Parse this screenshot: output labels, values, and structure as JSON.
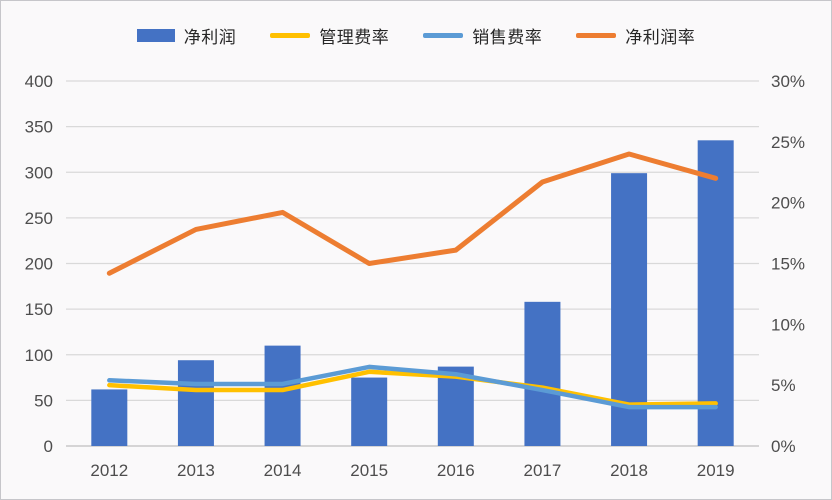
{
  "chart_data": {
    "type": "bar",
    "subtype": "combo-bar-line-dual-axis",
    "title": "",
    "categories": [
      "2012",
      "2013",
      "2014",
      "2015",
      "2016",
      "2017",
      "2018",
      "2019"
    ],
    "bar_series": {
      "id": "net-profit",
      "name": "净利润",
      "axis": "left",
      "color": "#4472C4",
      "values": [
        62,
        94,
        110,
        75,
        87,
        158,
        299,
        335
      ]
    },
    "line_series": [
      {
        "id": "admin-expense-ratio",
        "name": "管理费率",
        "axis": "right",
        "color": "#FFC000",
        "values": [
          5.0,
          4.6,
          4.6,
          6.1,
          5.7,
          4.8,
          3.4,
          3.5
        ]
      },
      {
        "id": "sales-expense-ratio",
        "name": "销售费率",
        "axis": "right",
        "color": "#5B9BD5",
        "values": [
          5.4,
          5.1,
          5.1,
          6.5,
          5.9,
          4.6,
          3.2,
          3.2
        ]
      },
      {
        "id": "net-profit-margin",
        "name": "净利润率",
        "axis": "right",
        "color": "#ED7D31",
        "values": [
          14.2,
          17.8,
          19.2,
          15.0,
          16.1,
          21.7,
          24.0,
          22.0
        ]
      }
    ],
    "left_axis": {
      "min": 0,
      "max": 400,
      "step": 50,
      "tick_labels": [
        "0",
        "50",
        "100",
        "150",
        "200",
        "250",
        "300",
        "350",
        "400"
      ]
    },
    "right_axis": {
      "min": 0,
      "max": 30,
      "step": 5,
      "tick_labels": [
        "0%",
        "5%",
        "10%",
        "15%",
        "20%",
        "25%",
        "30%"
      ]
    },
    "legend_position": "top",
    "grid": true,
    "colors": {
      "background": "#faf9fa",
      "gridline": "#d9d9d9",
      "axis_line": "#bfbfbf",
      "tick_text": "#4d4d4d",
      "legend_text": "#262626"
    }
  }
}
